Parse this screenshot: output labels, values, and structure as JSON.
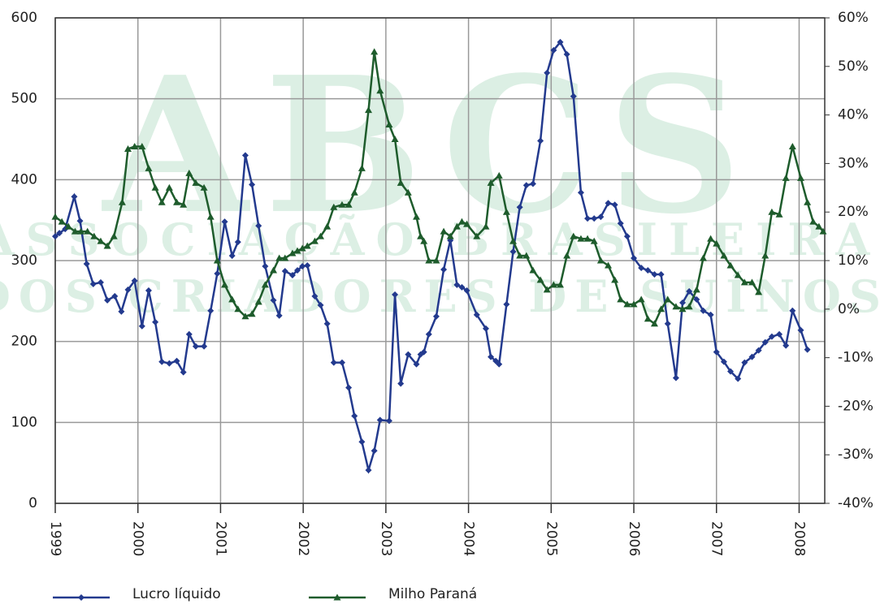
{
  "chart_data": {
    "type": "line",
    "watermark": [
      "ABCS",
      "ASSOCIAÇÃO BRASILEIRA",
      "DOS CRIADORES DE SUÍNOS"
    ],
    "xlim": [
      1999,
      2008.31
    ],
    "xticks": [
      1999,
      2000,
      2001,
      2002,
      2003,
      2004,
      2005,
      2006,
      2007,
      2008
    ],
    "ylim": [
      0,
      600
    ],
    "yticks": [
      0,
      100,
      200,
      300,
      400,
      500,
      600
    ],
    "y2lim": [
      -40,
      60
    ],
    "y2ticks": [
      {
        "value": -40,
        "label": "-40%"
      },
      {
        "value": -30,
        "label": "-30%"
      },
      {
        "value": -20,
        "label": "-20%"
      },
      {
        "value": -10,
        "label": "-10%"
      },
      {
        "value": 0,
        "label": "0%"
      },
      {
        "value": 10,
        "label": "10%"
      },
      {
        "value": 20,
        "label": "20%"
      },
      {
        "value": 30,
        "label": "30%"
      },
      {
        "value": 40,
        "label": "40%"
      },
      {
        "value": 50,
        "label": "50%"
      },
      {
        "value": 60,
        "label": "60%"
      }
    ],
    "grid": true,
    "legend": "bottom",
    "series": [
      {
        "name": "Lucro líquido",
        "color": "#233a8e",
        "marker": "diamond",
        "x": [
          1999.0,
          1999.05,
          1999.12,
          1999.23,
          1999.3,
          1999.38,
          1999.46,
          1999.55,
          1999.63,
          1999.72,
          1999.8,
          1999.88,
          1999.96,
          2000.05,
          2000.13,
          2000.21,
          2000.29,
          2000.38,
          2000.47,
          2000.55,
          2000.62,
          2000.7,
          2000.8,
          2000.88,
          2000.96,
          2001.05,
          2001.14,
          2001.21,
          2001.3,
          2001.38,
          2001.46,
          2001.54,
          2001.64,
          2001.71,
          2001.78,
          2001.87,
          2001.93,
          2001.99,
          2002.05,
          2002.14,
          2002.21,
          2002.29,
          2002.37,
          2002.47,
          2002.55,
          2002.62,
          2002.71,
          2002.79,
          2002.86,
          2002.93,
          2003.04,
          2003.11,
          2003.18,
          2003.27,
          2003.37,
          2003.42,
          2003.46,
          2003.52,
          2003.61,
          2003.7,
          2003.78,
          2003.86,
          2003.92,
          2003.98,
          2004.1,
          2004.21,
          2004.27,
          2004.33,
          2004.37,
          2004.46,
          2004.54,
          2004.62,
          2004.7,
          2004.78,
          2004.87,
          2004.95,
          2005.03,
          2005.11,
          2005.19,
          2005.27,
          2005.36,
          2005.44,
          2005.52,
          2005.6,
          2005.69,
          2005.77,
          2005.84,
          2005.92,
          2006.0,
          2006.09,
          2006.17,
          2006.25,
          2006.33,
          2006.41,
          2006.51,
          2006.59,
          2006.67,
          2006.76,
          2006.84,
          2006.93,
          2007.0,
          2007.09,
          2007.17,
          2007.26,
          2007.34,
          2007.43,
          2007.51,
          2007.59,
          2007.67,
          2007.76,
          2007.84,
          2007.92,
          2008.02,
          2008.1
        ],
        "values": [
          330,
          334,
          339,
          379,
          349,
          296,
          271,
          273,
          251,
          256,
          237,
          264,
          275,
          219,
          263,
          224,
          175,
          173,
          176,
          162,
          209,
          194,
          194,
          238,
          284,
          348,
          306,
          323,
          430,
          394,
          343,
          293,
          251,
          232,
          287,
          282,
          288,
          293,
          294,
          256,
          245,
          222,
          174,
          174,
          143,
          108,
          76,
          41,
          65,
          103,
          102,
          258,
          148,
          184,
          172,
          184,
          187,
          209,
          231,
          289,
          325,
          270,
          267,
          263,
          233,
          216,
          181,
          176,
          172,
          246,
          311,
          366,
          393,
          395,
          448,
          532,
          560,
          570,
          555,
          503,
          384,
          352,
          352,
          354,
          371,
          369,
          346,
          330,
          303,
          291,
          288,
          283,
          283,
          222,
          155,
          248,
          262,
          252,
          238,
          233,
          187,
          175,
          163,
          154,
          174,
          181,
          189,
          199,
          206,
          209,
          195,
          238,
          214,
          190
        ]
      },
      {
        "name": "Milho Paraná",
        "color": "#1e5c2c",
        "marker": "triangle",
        "axis": "y2",
        "x": [
          1999.0,
          1999.08,
          1999.16,
          1999.24,
          1999.31,
          1999.39,
          1999.47,
          1999.55,
          1999.63,
          1999.71,
          1999.81,
          1999.88,
          1999.96,
          2000.05,
          2000.13,
          2000.21,
          2000.29,
          2000.38,
          2000.47,
          2000.55,
          2000.62,
          2000.7,
          2000.8,
          2000.88,
          2000.96,
          2001.05,
          2001.14,
          2001.21,
          2001.3,
          2001.38,
          2001.46,
          2001.54,
          2001.64,
          2001.71,
          2001.78,
          2001.87,
          2001.93,
          2001.99,
          2002.05,
          2002.14,
          2002.21,
          2002.29,
          2002.37,
          2002.47,
          2002.55,
          2002.62,
          2002.71,
          2002.79,
          2002.86,
          2002.93,
          2003.04,
          2003.11,
          2003.18,
          2003.27,
          2003.37,
          2003.42,
          2003.46,
          2003.52,
          2003.61,
          2003.7,
          2003.78,
          2003.86,
          2003.92,
          2003.98,
          2004.1,
          2004.21,
          2004.27,
          2004.37,
          2004.46,
          2004.54,
          2004.62,
          2004.7,
          2004.78,
          2004.87,
          2004.95,
          2005.03,
          2005.11,
          2005.19,
          2005.27,
          2005.36,
          2005.44,
          2005.52,
          2005.6,
          2005.69,
          2005.77,
          2005.84,
          2005.92,
          2006.0,
          2006.09,
          2006.17,
          2006.25,
          2006.33,
          2006.41,
          2006.51,
          2006.59,
          2006.67,
          2006.76,
          2006.84,
          2006.93,
          2007.0,
          2007.09,
          2007.17,
          2007.26,
          2007.34,
          2007.43,
          2007.51,
          2007.59,
          2007.67,
          2007.76,
          2007.84,
          2007.92,
          2008.02,
          2008.1,
          2008.17,
          2008.24,
          2008.29
        ],
        "values": [
          19,
          18,
          17,
          16,
          16,
          16,
          15,
          14,
          13,
          15,
          22,
          33,
          33.5,
          33.5,
          29,
          25,
          22,
          25,
          22,
          21.5,
          28,
          26,
          25,
          19,
          10,
          5,
          2,
          0,
          -1.5,
          -1,
          1.5,
          5,
          8,
          10.5,
          10.5,
          11.5,
          12,
          12.5,
          13,
          14,
          15,
          17,
          21,
          21.5,
          21.5,
          24,
          29,
          41,
          53,
          45,
          38,
          35,
          26,
          24,
          19,
          15,
          14,
          10,
          10,
          16,
          15,
          17,
          18,
          17.5,
          15,
          17,
          26,
          27.5,
          20,
          14,
          11,
          11,
          8,
          6,
          4,
          5,
          5,
          11,
          15,
          14.5,
          14.5,
          14,
          10,
          9,
          6,
          2,
          1,
          1,
          2,
          -2,
          -3,
          0,
          2,
          0.5,
          0,
          0.5,
          4,
          10.5,
          14.5,
          13.5,
          11,
          9,
          7,
          5.5,
          5.5,
          3.5,
          11,
          20,
          19.5,
          27,
          33.5,
          27,
          22,
          18,
          17,
          16
        ]
      }
    ]
  }
}
